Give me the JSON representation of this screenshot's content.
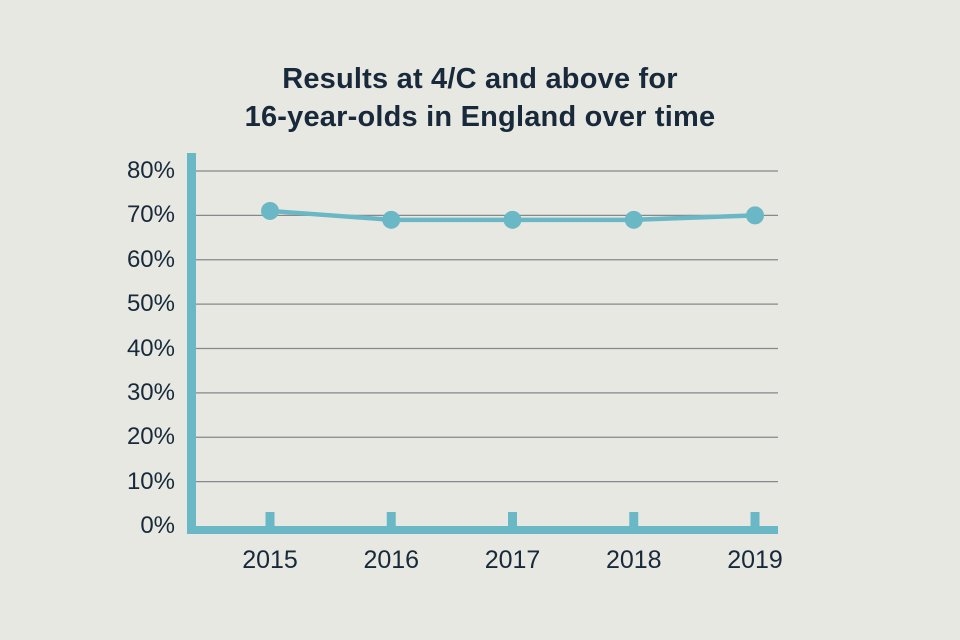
{
  "page": {
    "background": "#e8e8e2"
  },
  "colors": {
    "accent": "#6ab8c5",
    "title_text": "#17293a",
    "axis_label_text": "#17293a",
    "gridline": "#85898c"
  },
  "title": {
    "line1": "Results at 4/C and above for",
    "line2": "16-year-olds in England over time"
  },
  "chart_data": {
    "type": "line",
    "title": "Results at 4/C and above for 16-year-olds in England over time",
    "x": [
      "2015",
      "2016",
      "2017",
      "2018",
      "2019"
    ],
    "series": [
      {
        "name": "Results at 4/C and above",
        "values": [
          71,
          69,
          69,
          69,
          70
        ]
      }
    ],
    "xlabel": "",
    "ylabel": "",
    "ylim": [
      0,
      80
    ],
    "ytick_step": 10,
    "ytick_labels": [
      "0%",
      "10%",
      "20%",
      "30%",
      "40%",
      "50%",
      "60%",
      "70%",
      "80%"
    ],
    "grid": true,
    "legend": false,
    "marker": "circle"
  }
}
